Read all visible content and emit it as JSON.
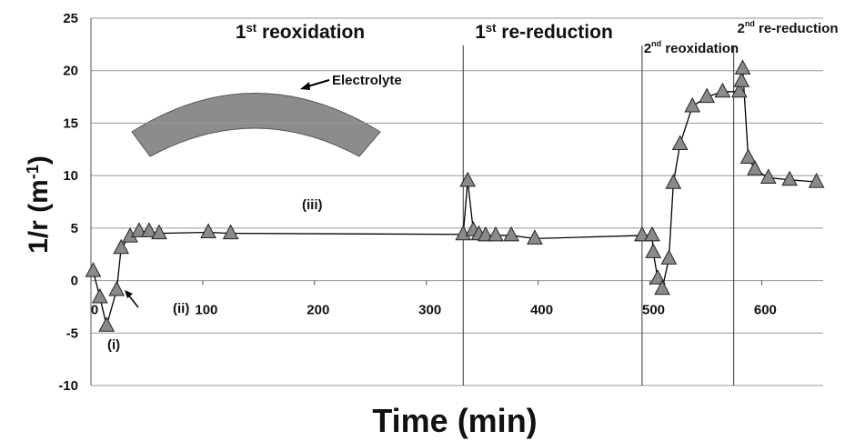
{
  "chart_data": {
    "type": "line",
    "x_label": "Time (min)",
    "y_label": {
      "pre": "1/r (m",
      "sup": "-1",
      "post": ")"
    },
    "xlim": [
      0,
      655
    ],
    "ylim": [
      -10,
      25
    ],
    "xticks": [
      0,
      100,
      200,
      300,
      400,
      500,
      600
    ],
    "yticks": [
      -10,
      -5,
      0,
      5,
      10,
      15,
      20,
      25
    ],
    "grid": true,
    "color": "#8a8a8a",
    "vlines": [
      333,
      493,
      575
    ],
    "x": [
      2,
      8,
      14,
      23,
      27,
      35,
      43,
      52,
      61,
      105,
      125,
      333,
      337,
      342,
      347,
      353,
      362,
      376,
      397,
      493,
      502,
      503,
      507,
      511,
      517,
      521,
      527,
      538,
      551,
      565,
      580,
      582,
      583,
      588,
      594,
      606,
      625,
      649
    ],
    "values": [
      0.9,
      -1.6,
      -4.3,
      -0.9,
      3.1,
      4.2,
      4.7,
      4.7,
      4.5,
      4.6,
      4.5,
      4.4,
      9.5,
      4.8,
      4.4,
      4.3,
      4.3,
      4.3,
      4.0,
      4.3,
      4.3,
      2.7,
      0.2,
      -0.8,
      2.1,
      9.3,
      13,
      16.6,
      17.5,
      18.0,
      18.0,
      19,
      20.2,
      11.7,
      10.6,
      9.8,
      9.6,
      9.4
    ],
    "phases": [
      {
        "pre": "1",
        "sup": "st",
        "post": " reoxidation"
      },
      {
        "pre": "1",
        "sup": "st",
        "post": " re-reduction"
      },
      {
        "pre": "2",
        "sup": "nd",
        "post": " reoxidation"
      },
      {
        "pre": "2",
        "sup": "nd",
        "post": " re-reduction"
      }
    ],
    "annotations": [
      "Electrolyte",
      "(i)",
      "(ii)",
      "(iii)"
    ]
  }
}
